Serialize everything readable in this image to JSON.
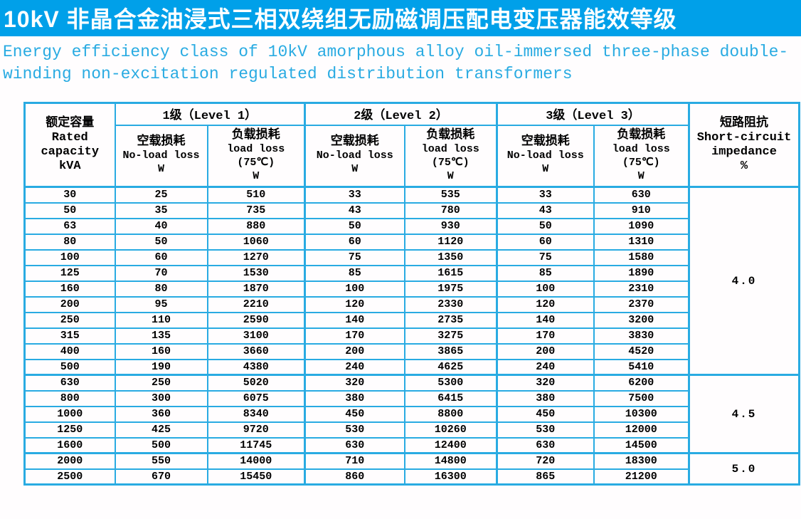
{
  "colors": {
    "title_bar_bg": "#00A0E9",
    "accent": "#29ABE2",
    "text": "#000000",
    "title_text": "#FFFFFF"
  },
  "title": "10kV 非晶合金油浸式三相双绕组无励磁调压配电变压器能效等级",
  "subtitle_lines": [
    "Energy efficiency class of 10kV amorphous alloy oil-immersed three-phase double-",
    "winding non-excitation regulated distribution transformers"
  ],
  "table": {
    "rated_header_lines": [
      "额定容量",
      "Rated",
      "capacity",
      "kVA"
    ],
    "level_headers": [
      "1级（Level 1）",
      "2级（Level 2）",
      "3级（Level 3）"
    ],
    "no_load_header_lines": [
      "空载损耗",
      "No-load loss",
      "W"
    ],
    "load_header_lines": [
      "负载损耗",
      "load loss",
      "(75℃)",
      "W"
    ],
    "impedance_header_lines": [
      "短路阻抗",
      "Short-circuit",
      "impedance",
      "%"
    ],
    "groups": [
      {
        "short_circuit_impedance": "4.0",
        "rows": [
          [
            30,
            25,
            510,
            33,
            535,
            33,
            630
          ],
          [
            50,
            35,
            735,
            43,
            780,
            43,
            910
          ],
          [
            63,
            40,
            880,
            50,
            930,
            50,
            1090
          ],
          [
            80,
            50,
            1060,
            60,
            1120,
            60,
            1310
          ],
          [
            100,
            60,
            1270,
            75,
            1350,
            75,
            1580
          ],
          [
            125,
            70,
            1530,
            85,
            1615,
            85,
            1890
          ],
          [
            160,
            80,
            1870,
            100,
            1975,
            100,
            2310
          ],
          [
            200,
            95,
            2210,
            120,
            2330,
            120,
            2370
          ],
          [
            250,
            110,
            2590,
            140,
            2735,
            140,
            3200
          ],
          [
            315,
            135,
            3100,
            170,
            3275,
            170,
            3830
          ],
          [
            400,
            160,
            3660,
            200,
            3865,
            200,
            4520
          ],
          [
            500,
            190,
            4380,
            240,
            4625,
            240,
            5410
          ]
        ]
      },
      {
        "short_circuit_impedance": "4.5",
        "rows": [
          [
            630,
            250,
            5020,
            320,
            5300,
            320,
            6200
          ],
          [
            800,
            300,
            6075,
            380,
            6415,
            380,
            7500
          ],
          [
            1000,
            360,
            8340,
            450,
            8800,
            450,
            10300
          ],
          [
            1250,
            425,
            9720,
            530,
            10260,
            530,
            12000
          ],
          [
            1600,
            500,
            11745,
            630,
            12400,
            630,
            14500
          ]
        ]
      },
      {
        "short_circuit_impedance": "5.0",
        "rows": [
          [
            2000,
            550,
            14000,
            710,
            14800,
            720,
            18300
          ],
          [
            2500,
            670,
            15450,
            860,
            16300,
            865,
            21200
          ]
        ]
      }
    ]
  }
}
